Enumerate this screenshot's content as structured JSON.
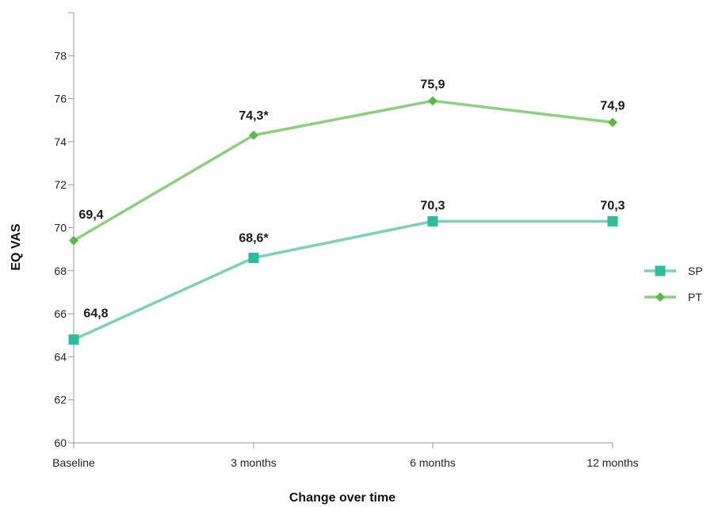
{
  "chart_data": {
    "type": "line",
    "categories": [
      "Baseline",
      "3 months",
      "6 months",
      "12 months"
    ],
    "series": [
      {
        "name": "SP",
        "values": [
          64.8,
          68.6,
          70.3,
          70.3
        ],
        "labels": [
          "64,8",
          "68,6*",
          "70,3",
          "70,3"
        ],
        "color": "#7fd0b8",
        "marker_color": "#2ebd98",
        "marker": "square"
      },
      {
        "name": "PT",
        "values": [
          69.4,
          74.3,
          75.9,
          74.9
        ],
        "labels": [
          "69,4",
          "74,3*",
          "75,9",
          "74,9"
        ],
        "color": "#8ccf7e",
        "marker_color": "#5cb84a",
        "marker": "diamond"
      }
    ],
    "xlabel": "Change over time",
    "ylabel": "EQ VAS",
    "ylim": [
      60,
      80
    ],
    "yticks": [
      60,
      62,
      64,
      66,
      68,
      70,
      72,
      74,
      76,
      78
    ],
    "grid": false,
    "legend_position": "right"
  }
}
